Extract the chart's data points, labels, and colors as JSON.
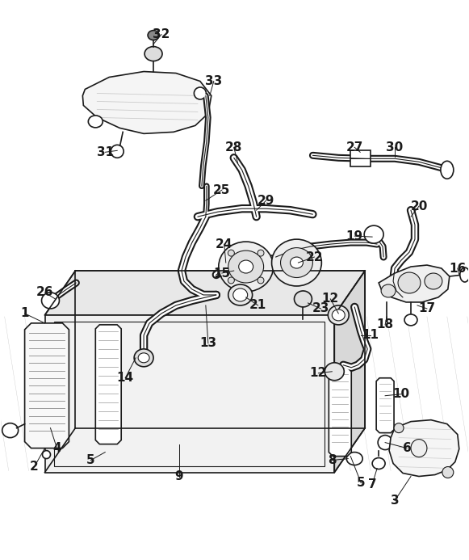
{
  "bg_color": "#ffffff",
  "line_color": "#1a1a1a",
  "fig_width": 5.81,
  "fig_height": 6.93,
  "dpi": 100
}
